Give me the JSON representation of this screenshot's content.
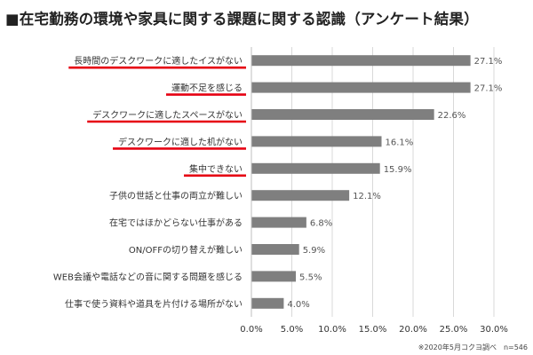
{
  "chart_data": {
    "type": "bar",
    "orientation": "horizontal",
    "title": "■在宅勤務の環境や家具に関する課題に関する認識（アンケート結果）",
    "categories": [
      "長時間のデスクワークに適したイスがない",
      "運動不足を感じる",
      "デスクワークに適したスペースがない",
      "デスクワークに適した机がない",
      "集中できない",
      "子供の世話と仕事の両立が難しい",
      "在宅ではほかどらない仕事がある",
      "ON/OFFの切り替えが難しい",
      "WEB会議や電話などの音に関する問題を感じる",
      "仕事で使う資料や道具を片付ける場所がない"
    ],
    "values": [
      27.1,
      27.1,
      22.6,
      16.1,
      15.9,
      12.1,
      6.8,
      5.9,
      5.5,
      4.0
    ],
    "value_labels": [
      "27.1%",
      "27.1%",
      "22.6%",
      "16.1%",
      "15.9%",
      "12.1%",
      "6.8%",
      "5.9%",
      "5.5%",
      "4.0%"
    ],
    "underlined": [
      true,
      true,
      true,
      true,
      true,
      false,
      false,
      false,
      false,
      false
    ],
    "xlim": [
      0,
      30
    ],
    "xticks": [
      "0.0%",
      "5.0%",
      "10.0%",
      "15.0%",
      "20.0%",
      "25.0%",
      "30.0%"
    ],
    "grid": true,
    "footnote": "※2020年5月コクヨ調べ　n=546",
    "colors": {
      "bar": "#7f7f7f",
      "underline": "#e60012",
      "grid": "#d9d9d9"
    }
  }
}
